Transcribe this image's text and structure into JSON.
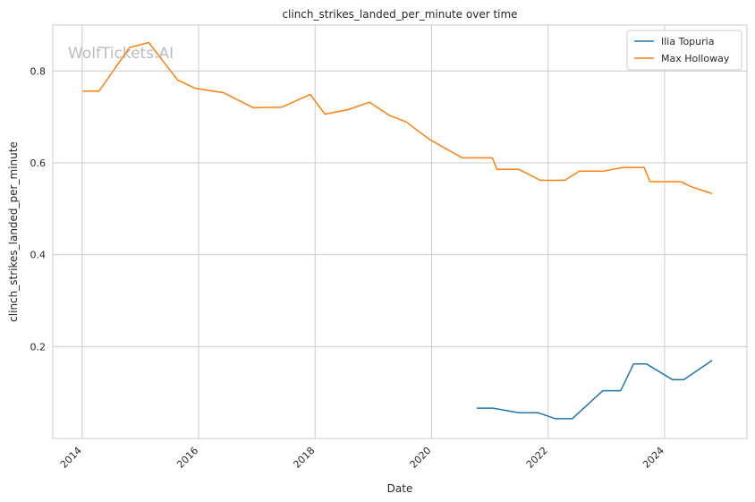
{
  "chart_data": {
    "type": "line",
    "title": "clinch_strikes_landed_per_minute over time",
    "xlabel": "Date",
    "ylabel": "clinch_strikes_landed_per_minute",
    "watermark": "WolfTickets.AI",
    "x_ticks": [
      "2014",
      "2016",
      "2018",
      "2020",
      "2022",
      "2024"
    ],
    "y_ticks": [
      "0.2",
      "0.4",
      "0.6",
      "0.8"
    ],
    "x_range": [
      "2013-07-01",
      "2025-06-01"
    ],
    "ylim": [
      0.0,
      0.9
    ],
    "grid": true,
    "legend_position": "top-right",
    "series": [
      {
        "name": "Ilia Topuria",
        "color": "#1f77b4",
        "points": [
          [
            "2020-10-10",
            0.066
          ],
          [
            "2021-01-20",
            0.066
          ],
          [
            "2021-07-01",
            0.056
          ],
          [
            "2021-11-01",
            0.056
          ],
          [
            "2022-02-15",
            0.043
          ],
          [
            "2022-06-01",
            0.043
          ],
          [
            "2022-12-10",
            0.104
          ],
          [
            "2023-04-01",
            0.104
          ],
          [
            "2023-06-20",
            0.162
          ],
          [
            "2023-09-10",
            0.162
          ],
          [
            "2024-02-20",
            0.128
          ],
          [
            "2024-05-01",
            0.128
          ],
          [
            "2024-10-26",
            0.17
          ]
        ]
      },
      {
        "name": "Max Holloway",
        "color": "#ff7f0e",
        "points": [
          [
            "2014-01-04",
            0.756
          ],
          [
            "2014-04-16",
            0.756
          ],
          [
            "2014-10-25",
            0.851
          ],
          [
            "2015-02-22",
            0.862
          ],
          [
            "2015-06-06",
            0.815
          ],
          [
            "2015-08-23",
            0.78
          ],
          [
            "2015-12-12",
            0.762
          ],
          [
            "2016-06-04",
            0.753
          ],
          [
            "2016-12-10",
            0.72
          ],
          [
            "2017-06-03",
            0.721
          ],
          [
            "2017-12-02",
            0.749
          ],
          [
            "2018-03-03",
            0.706
          ],
          [
            "2018-07-28",
            0.716
          ],
          [
            "2018-12-08",
            0.732
          ],
          [
            "2019-04-13",
            0.703
          ],
          [
            "2019-07-27",
            0.689
          ],
          [
            "2019-12-14",
            0.652
          ],
          [
            "2020-07-11",
            0.611
          ],
          [
            "2021-01-16",
            0.611
          ],
          [
            "2021-02-15",
            0.586
          ],
          [
            "2021-07-01",
            0.586
          ],
          [
            "2021-11-13",
            0.562
          ],
          [
            "2022-04-15",
            0.562
          ],
          [
            "2022-07-16",
            0.582
          ],
          [
            "2022-12-15",
            0.582
          ],
          [
            "2023-04-15",
            0.59
          ],
          [
            "2023-08-26",
            0.59
          ],
          [
            "2023-10-01",
            0.559
          ],
          [
            "2024-04-13",
            0.559
          ],
          [
            "2024-06-15",
            0.548
          ],
          [
            "2024-10-26",
            0.533
          ]
        ]
      }
    ]
  }
}
